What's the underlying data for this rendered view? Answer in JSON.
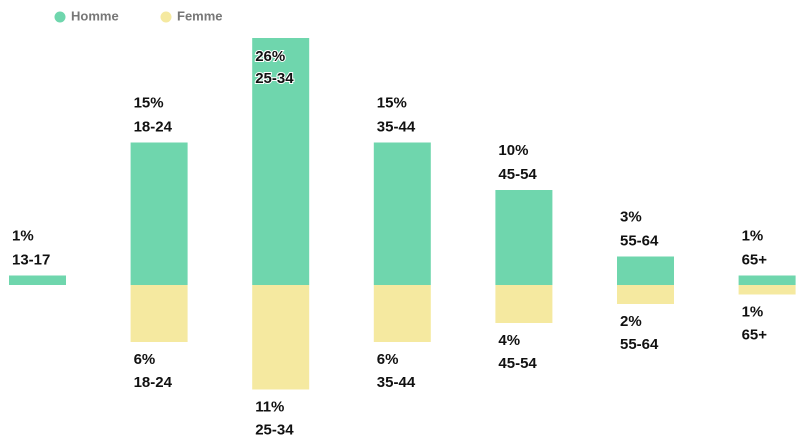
{
  "chart_data": {
    "type": "diverging-bar",
    "categories": [
      "13-17",
      "18-24",
      "25-34",
      "35-44",
      "45-54",
      "55-64",
      "65+"
    ],
    "series": [
      {
        "name": "Homme",
        "color": "#6fd6ad",
        "values": [
          1,
          15,
          26,
          15,
          10,
          3,
          1
        ],
        "value_labels": [
          "1%",
          "15%",
          "26%",
          "15%",
          "10%",
          "3%",
          "1%"
        ]
      },
      {
        "name": "Femme",
        "color": "#f5e9a0",
        "values": [
          null,
          6,
          11,
          6,
          4,
          2,
          1
        ],
        "value_labels": [
          null,
          "6%",
          "11%",
          "6%",
          "4%",
          "2%",
          "1%"
        ]
      }
    ],
    "legend": "top-left"
  }
}
